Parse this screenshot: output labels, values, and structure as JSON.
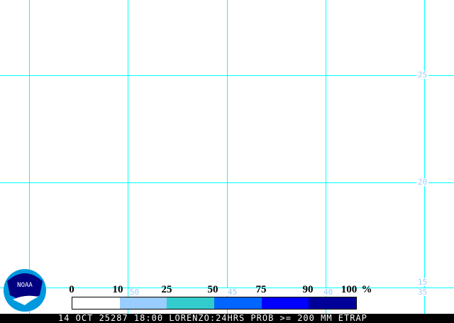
{
  "map": {
    "grid_color": "#00ffff",
    "lat_labels": [
      "25",
      "20",
      "15"
    ],
    "lon_labels": [
      "50",
      "45",
      "40",
      "35"
    ]
  },
  "legend": {
    "ticks": [
      "0",
      "10",
      "25",
      "50",
      "75",
      "90",
      "100"
    ],
    "unit": "%",
    "colors": [
      "#ffffff",
      "#99ccff",
      "#33cccc",
      "#0066ff",
      "#0000ff",
      "#000099"
    ]
  },
  "logo": {
    "text": "NOAA"
  },
  "footer": {
    "text": "14 OCT 25287 18:00 LORENZO:24HRS PROB >= 200 MM ETRAP"
  }
}
